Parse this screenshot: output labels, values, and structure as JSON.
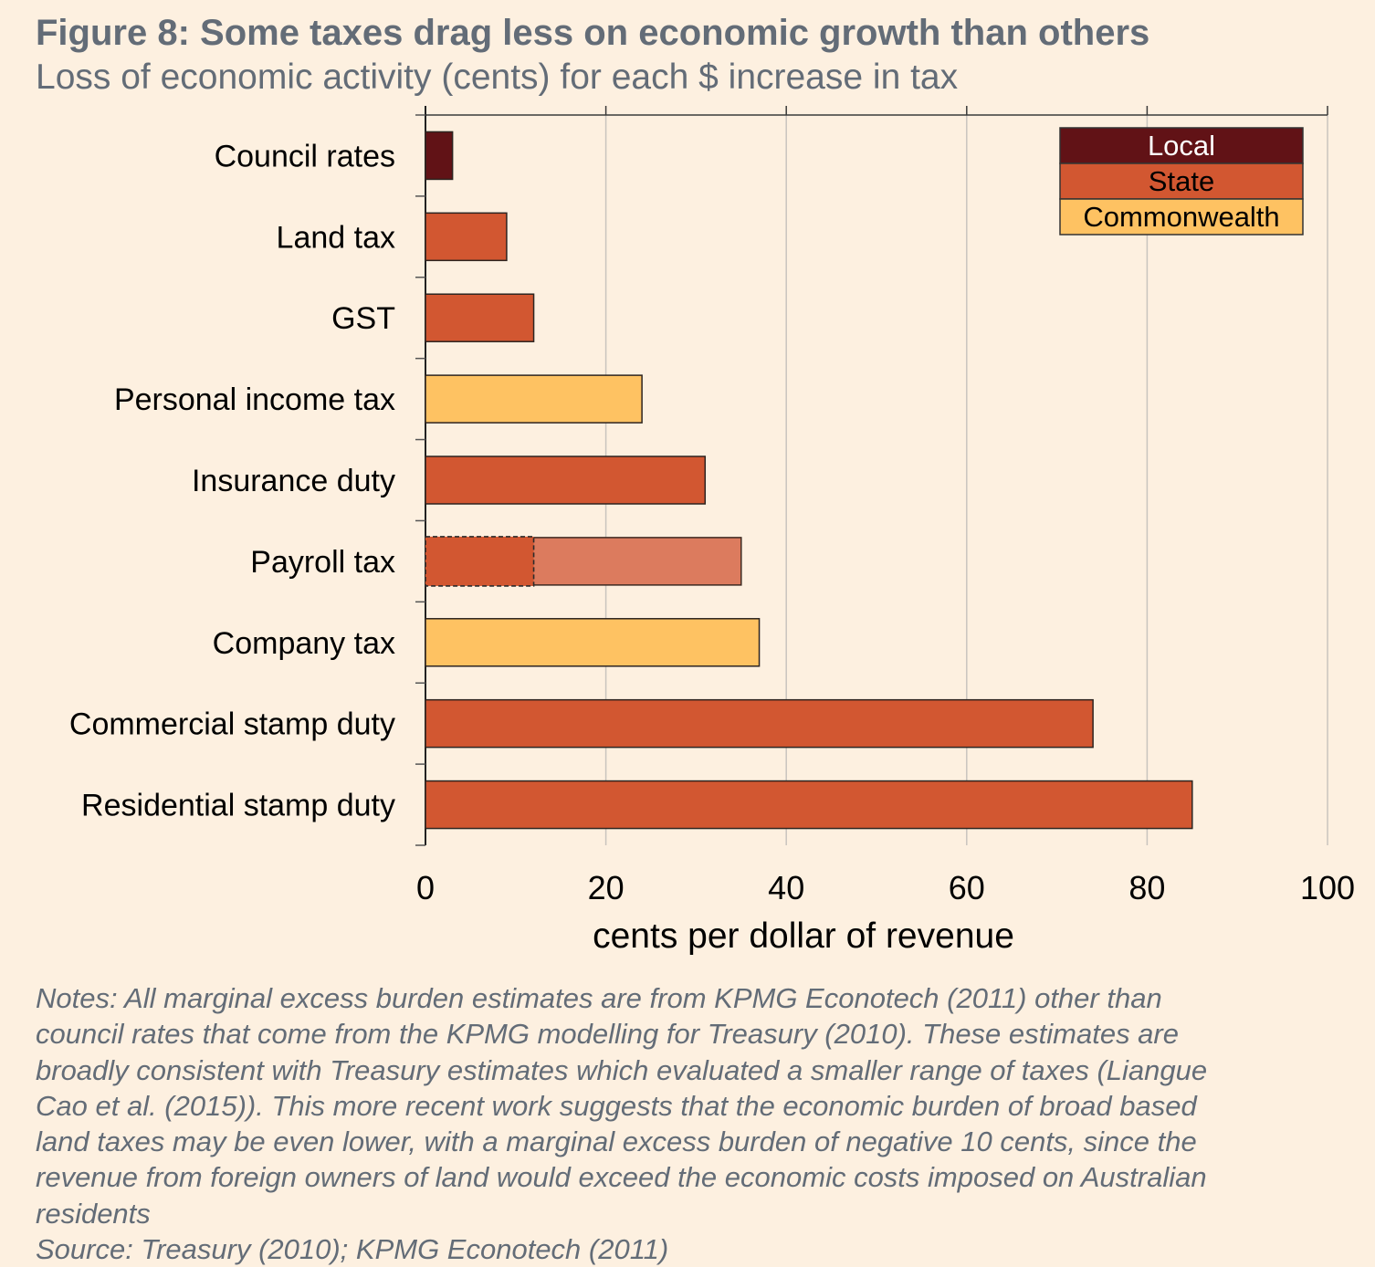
{
  "header": {
    "title": "Figure 8: Some taxes drag less on economic growth than others",
    "subtitle": "Loss of economic activity (cents) for each $ increase in tax"
  },
  "chart_data": {
    "type": "bar",
    "orientation": "horizontal",
    "title": "Figure 8: Some taxes drag less on economic growth than others",
    "subtitle": "Loss of economic activity (cents) for each $ increase in tax",
    "xlabel": "cents per dollar of revenue",
    "ylabel": "",
    "xlim": [
      0,
      100
    ],
    "xticks": [
      0,
      20,
      40,
      60,
      80,
      100
    ],
    "grid": true,
    "legend_position": "top-right",
    "legend": [
      {
        "name": "Local",
        "color": "#611216",
        "text_color": "#ffffff"
      },
      {
        "name": "State",
        "color": "#d25731",
        "text_color": "#000000"
      },
      {
        "name": "Commonwealth",
        "color": "#fec262",
        "text_color": "#000000"
      }
    ],
    "categories": [
      "Council rates",
      "Land tax",
      "GST",
      "Personal income tax",
      "Insurance duty",
      "Payroll tax",
      "Company tax",
      "Commercial stamp duty",
      "Residential stamp duty"
    ],
    "values": [
      3,
      9,
      12,
      24,
      31,
      35,
      37,
      74,
      85
    ],
    "levels": [
      "Local",
      "State",
      "State",
      "Commonwealth",
      "State",
      "State",
      "Commonwealth",
      "State",
      "State"
    ],
    "annotations": [
      {
        "category": "Payroll tax",
        "type": "dashed-segment",
        "value": 12,
        "note": "darker dashed-outline portion; remainder shown lighter"
      }
    ]
  },
  "notes": {
    "lines": [
      "Notes: All marginal excess burden estimates are from KPMG Econotech (2011) other than",
      "council rates that come from the KPMG modelling for Treasury (2010). These estimates are",
      "broadly consistent with Treasury estimates which evaluated a smaller range of taxes (Liangue",
      "Cao et al. (2015)). This more recent work suggests that the economic burden of broad based",
      "land taxes may be even lower, with a marginal excess burden of negative 10 cents, since the",
      "revenue from foreign owners of land would exceed the economic costs imposed on Australian",
      "residents"
    ],
    "source": "Source: Treasury (2010); KPMG Econotech (2011)"
  }
}
